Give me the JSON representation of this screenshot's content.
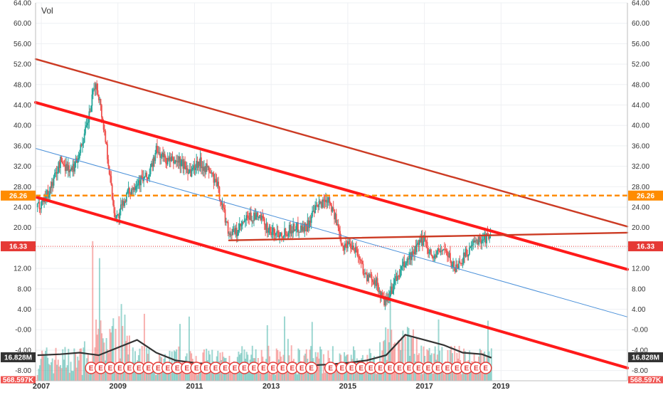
{
  "volume_label": "Vol",
  "colors": {
    "up": "#26a69a",
    "down": "#ef5350",
    "channel": "#ff1a1a",
    "outer_channel": "#cc3b24",
    "regression": "#4a90d9",
    "level": "#ff8c00",
    "price_line": "#e53935",
    "vol_ma": "#333333",
    "earnings": "#e53935"
  },
  "chart_data": {
    "type": "line",
    "xlim": [
      2006.85,
      2022.3
    ],
    "ylim": [
      -10,
      64
    ],
    "grid": true,
    "x_ticks": [
      "2007",
      "2009",
      "2011",
      "2013",
      "2015",
      "2017",
      "2019"
    ],
    "y_ticks": [
      "64.00",
      "60.00",
      "56.00",
      "52.00",
      "48.00",
      "44.00",
      "40.00",
      "36.00",
      "32.00",
      "28.00",
      "24.00",
      "20.00",
      "16.00",
      "12.00",
      "8.00",
      "4.00",
      "-0.00",
      "-4.00",
      "-8.00"
    ],
    "price_series": {
      "x": [
        2006.9,
        2007.2,
        2007.5,
        2007.8,
        2008.0,
        2008.2,
        2008.4,
        2008.5,
        2008.7,
        2008.9,
        2009.0,
        2009.2,
        2009.5,
        2009.8,
        2010.0,
        2010.3,
        2010.6,
        2010.9,
        2011.1,
        2011.4,
        2011.6,
        2011.9,
        2012.1,
        2012.4,
        2012.7,
        2013.0,
        2013.3,
        2013.6,
        2013.9,
        2014.2,
        2014.5,
        2014.7,
        2014.9,
        2015.0,
        2015.2,
        2015.5,
        2015.7,
        2015.9,
        2016.0,
        2016.2,
        2016.5,
        2016.8,
        2017.0,
        2017.2,
        2017.5,
        2017.8,
        2018.0,
        2018.2,
        2018.5,
        2018.7
      ],
      "y": [
        24,
        27,
        33,
        31,
        35,
        40,
        48,
        46,
        36,
        23,
        22,
        26,
        29,
        30,
        35,
        33,
        33,
        31,
        33,
        31,
        28,
        19,
        19,
        22,
        22,
        19,
        19,
        20,
        20,
        24,
        26,
        21,
        16,
        17,
        16,
        10,
        10,
        6,
        5,
        9,
        13,
        16,
        18,
        14,
        16,
        12,
        14,
        16,
        18,
        18
      ]
    },
    "trend_lines": [
      {
        "kind": "channel",
        "x": [
          2006.85,
          2022.3
        ],
        "y": [
          44.5,
          11.8
        ]
      },
      {
        "kind": "channel",
        "x": [
          2006.85,
          2022.3
        ],
        "y": [
          26.0,
          -7.5
        ]
      },
      {
        "kind": "outer",
        "x": [
          2006.85,
          2022.3
        ],
        "y": [
          53.0,
          20.2
        ]
      },
      {
        "kind": "regression",
        "x": [
          2006.85,
          2022.3
        ],
        "y": [
          35.5,
          2.5
        ]
      },
      {
        "kind": "outer",
        "x": [
          2011.9,
          2022.3
        ],
        "y": [
          17.5,
          19.0
        ]
      }
    ],
    "horizontal_levels": [
      {
        "value": 26.26,
        "label": "26.26",
        "style": "dashed",
        "color": "level"
      },
      {
        "value": 16.33,
        "label": "16.33",
        "style": "dotted",
        "color": "price_line"
      }
    ],
    "volume": {
      "label": "16.828M",
      "secondary_label": "568.597K",
      "ma_x": [
        2006.9,
        2007.5,
        2008.0,
        2008.5,
        2009.0,
        2009.5,
        2010.0,
        2010.5,
        2011.0,
        2011.5,
        2012.0,
        2012.5,
        2013.0,
        2013.5,
        2014.0,
        2014.5,
        2015.0,
        2015.5,
        2016.0,
        2016.5,
        2017.0,
        2017.5,
        2018.0,
        2018.5,
        2018.75
      ],
      "ma_y": [
        -5.0,
        -4.8,
        -4.5,
        -5.0,
        -3.5,
        -2.0,
        -4.5,
        -6.0,
        -6.5,
        -6.8,
        -7.0,
        -7.0,
        -7.0,
        -6.8,
        -7.0,
        -6.8,
        -6.5,
        -6.0,
        -5.0,
        -1.0,
        -2.0,
        -3.0,
        -4.5,
        -4.8,
        -5.5
      ]
    },
    "earnings_markers": {
      "letter": "E",
      "x": [
        2008.3,
        2008.55,
        2008.8,
        2009.05,
        2009.3,
        2009.55,
        2009.8,
        2010.05,
        2010.3,
        2010.55,
        2010.8,
        2011.05,
        2011.3,
        2011.55,
        2011.8,
        2012.05,
        2012.3,
        2012.55,
        2012.8,
        2013.05,
        2013.3,
        2013.55,
        2013.8,
        2014.05,
        2014.55,
        2014.85,
        2015.1,
        2015.35,
        2015.6,
        2015.85,
        2016.1,
        2016.35,
        2016.6,
        2016.85,
        2017.1,
        2017.35,
        2017.6,
        2017.85,
        2018.1,
        2018.35,
        2018.6
      ]
    }
  }
}
